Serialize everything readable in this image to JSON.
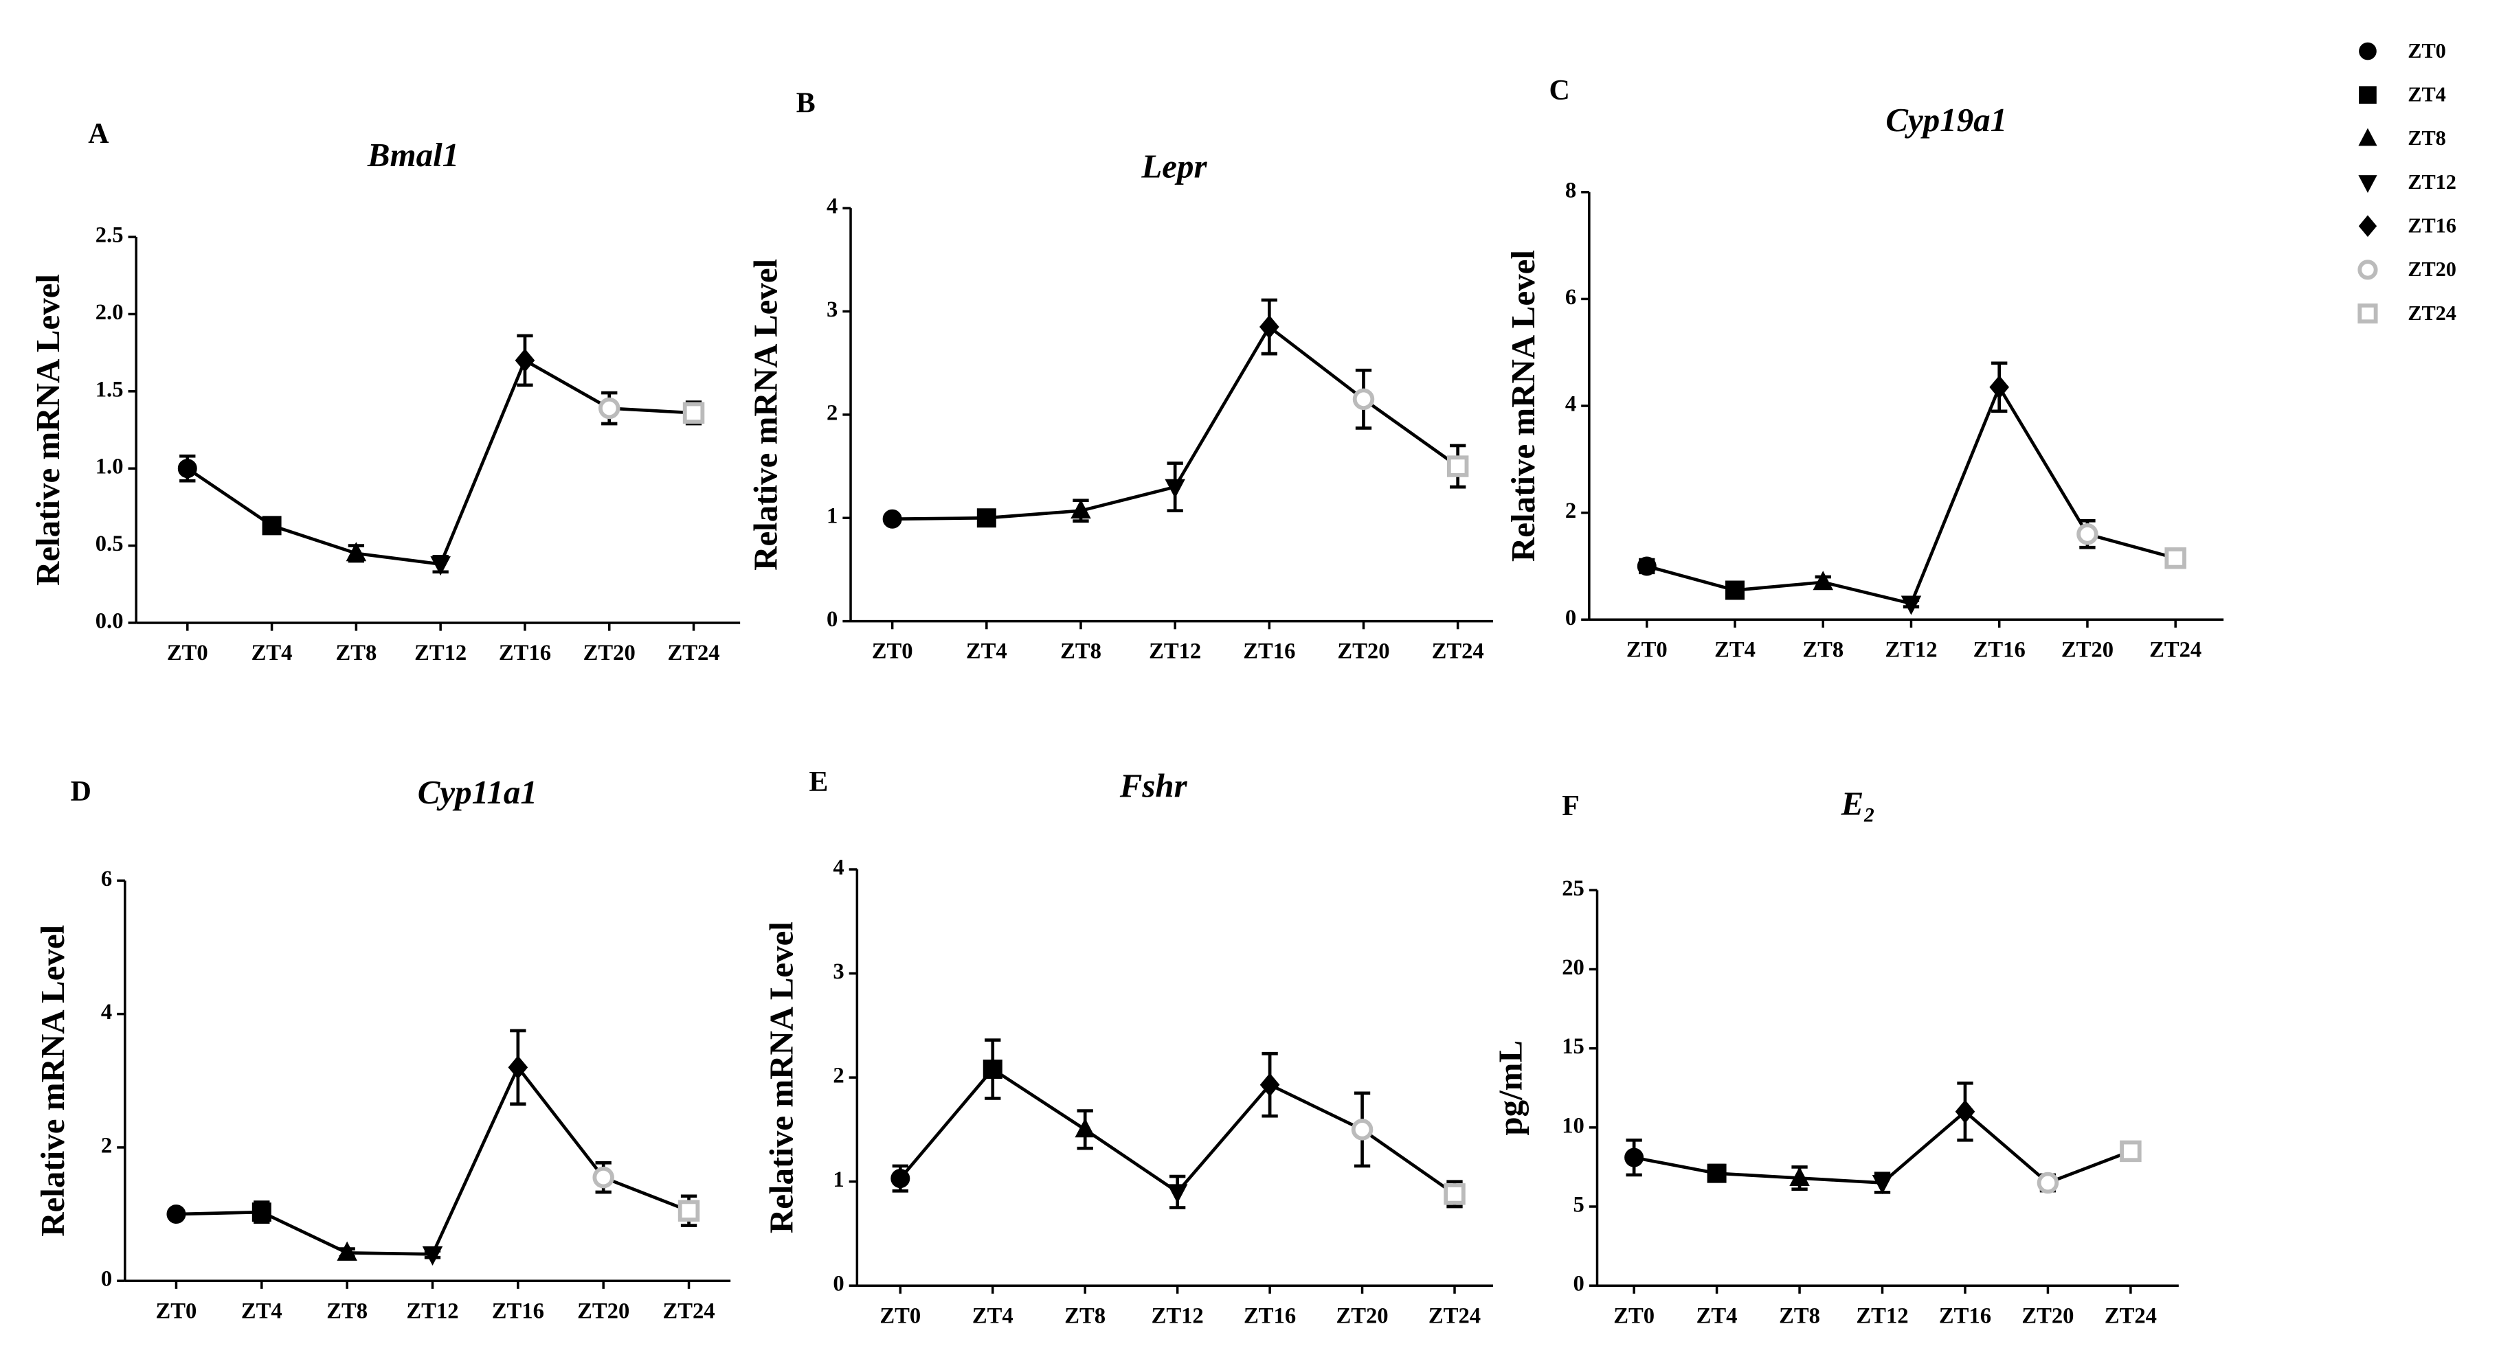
{
  "legend": [
    {
      "name": "ZT0",
      "color": "#000000"
    },
    {
      "name": "ZT4",
      "color": "#000000"
    },
    {
      "name": "ZT8",
      "color": "#000000"
    },
    {
      "name": "ZT12",
      "color": "#000000"
    },
    {
      "name": "ZT16",
      "color": "#000000"
    },
    {
      "name": "ZT20",
      "color": "#bbbbbb"
    },
    {
      "name": "ZT24",
      "color": "#bbbbbb"
    }
  ],
  "chart_data": [
    {
      "type": "line",
      "panel": "A",
      "title": "Bmal1",
      "y_label": "Relative mRNA Level",
      "categories": [
        "ZT0",
        "ZT4",
        "ZT8",
        "ZT12",
        "ZT16",
        "ZT20",
        "ZT24"
      ],
      "values": [
        1.0,
        0.63,
        0.45,
        0.38,
        1.7,
        1.39,
        1.36
      ],
      "errors": [
        0.08,
        0.03,
        0.05,
        0.05,
        0.16,
        0.1,
        0.07
      ],
      "ylim": [
        0,
        2.5
      ],
      "yticks": [
        {
          "value": 0,
          "label": "0.0"
        },
        0.5,
        {
          "value": 1,
          "label": "1.0"
        },
        1.5,
        {
          "value": 2,
          "label": "2.0"
        },
        2.5
      ]
    },
    {
      "type": "line",
      "panel": "B",
      "title": "Lepr",
      "y_label": "Relative mRNA Level",
      "categories": [
        "ZT0",
        "ZT4",
        "ZT8",
        "ZT12",
        "ZT16",
        "ZT20",
        "ZT24"
      ],
      "values": [
        0.99,
        1.0,
        1.07,
        1.3,
        2.85,
        2.15,
        1.5
      ],
      "errors": [
        0.03,
        0.04,
        0.1,
        0.23,
        0.26,
        0.28,
        0.2
      ],
      "ylim": [
        0,
        4
      ],
      "yticks": [
        0,
        1,
        2,
        3,
        4
      ]
    },
    {
      "type": "line",
      "panel": "C",
      "title": "Cyp19a1",
      "y_label": "Relative mRNA Level",
      "categories": [
        "ZT0",
        "ZT4",
        "ZT8",
        "ZT12",
        "ZT16",
        "ZT20",
        "ZT24"
      ],
      "values": [
        1.0,
        0.55,
        0.7,
        0.3,
        4.35,
        1.6,
        1.15
      ],
      "errors": [
        0.12,
        0.08,
        0.1,
        0.06,
        0.45,
        0.25,
        0.12
      ],
      "ylim": [
        0,
        8
      ],
      "yticks": [
        0,
        2,
        4,
        6,
        8
      ]
    },
    {
      "type": "line",
      "panel": "D",
      "title": "Cyp11a1",
      "y_label": "Relative mRNA Level",
      "categories": [
        "ZT0",
        "ZT4",
        "ZT8",
        "ZT12",
        "ZT16",
        "ZT20",
        "ZT24"
      ],
      "values": [
        1.0,
        1.03,
        0.42,
        0.4,
        3.2,
        1.55,
        1.05
      ],
      "errors": [
        0.03,
        0.15,
        0.06,
        0.05,
        0.55,
        0.22,
        0.22
      ],
      "ylim": [
        0,
        6
      ],
      "yticks": [
        0,
        2,
        4,
        6
      ]
    },
    {
      "type": "line",
      "panel": "E",
      "title": "Fshr",
      "y_label": "Relative mRNA Level",
      "categories": [
        "ZT0",
        "ZT4",
        "ZT8",
        "ZT12",
        "ZT16",
        "ZT20",
        "ZT24"
      ],
      "values": [
        1.03,
        2.08,
        1.5,
        0.9,
        1.93,
        1.5,
        0.88
      ],
      "errors": [
        0.12,
        0.28,
        0.18,
        0.15,
        0.3,
        0.35,
        0.12
      ],
      "ylim": [
        0,
        4
      ],
      "yticks": [
        0,
        1,
        2,
        3,
        4
      ]
    },
    {
      "type": "line",
      "panel": "F",
      "title": "E₂",
      "y_label": "pg/mL",
      "categories": [
        "ZT0",
        "ZT4",
        "ZT8",
        "ZT12",
        "ZT16",
        "ZT20",
        "ZT24"
      ],
      "values": [
        8.1,
        7.1,
        6.8,
        6.5,
        11.0,
        6.5,
        8.5
      ],
      "errors": [
        1.1,
        0.5,
        0.7,
        0.6,
        1.8,
        0.5,
        0.4
      ],
      "ylim": [
        0,
        25
      ],
      "yticks": [
        0,
        5,
        10,
        15,
        20,
        25
      ]
    }
  ]
}
